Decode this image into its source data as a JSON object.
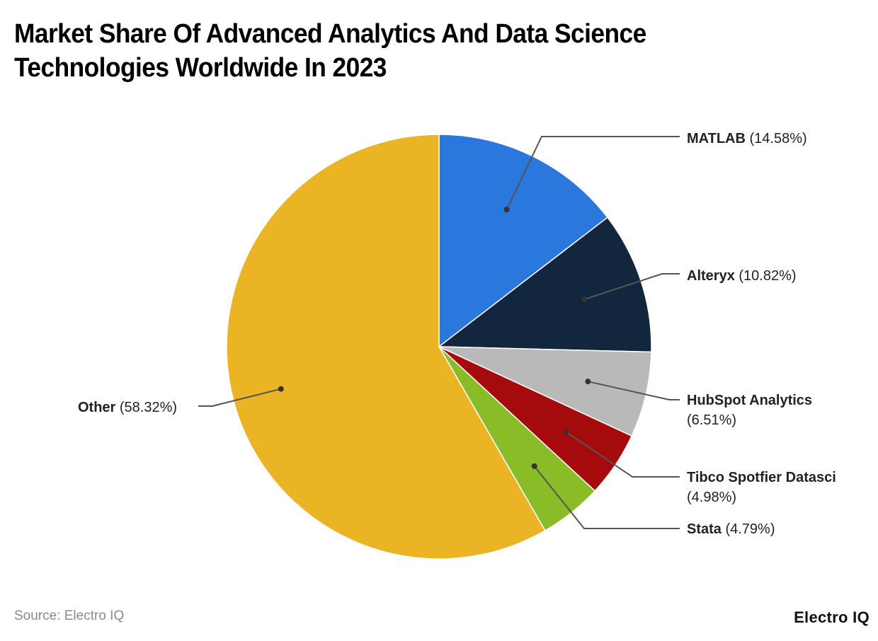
{
  "title": "Market Share Of Advanced Analytics And Data Science Technologies Worldwide In 2023",
  "footer": {
    "source": "Source: Electro IQ",
    "brand": "Electro IQ"
  },
  "chart_data": {
    "type": "pie",
    "title": "Market Share Of Advanced Analytics And Data Science Technologies Worldwide In 2023",
    "start_angle": "12 o'clock, clockwise",
    "categories": [
      "MATLAB",
      "Alteryx",
      "HubSpot Analytics",
      "Tibco Spotfier Datasci",
      "Stata",
      "Other"
    ],
    "values": [
      14.58,
      10.82,
      6.51,
      4.98,
      4.79,
      58.32
    ],
    "unit": "%",
    "colors": [
      "#2A77DD",
      "#12263D",
      "#B9B9B9",
      "#A50B0D",
      "#89BC26",
      "#EAB425"
    ],
    "labels": [
      {
        "name": "MATLAB",
        "value": "(14.58%)",
        "lines": 1
      },
      {
        "name": "Alteryx",
        "value": "(10.82%)",
        "lines": 1
      },
      {
        "name": "HubSpot Analytics",
        "value": "(6.51%)",
        "lines": 2
      },
      {
        "name": "Tibco Spotfier Datasci",
        "value": "(4.98%)",
        "lines": 2
      },
      {
        "name": "Stata",
        "value": "(4.79%)",
        "lines": 1
      },
      {
        "name": "Other",
        "value": "(58.32%)",
        "lines": 1
      }
    ],
    "legend": "none (callout labels)"
  }
}
